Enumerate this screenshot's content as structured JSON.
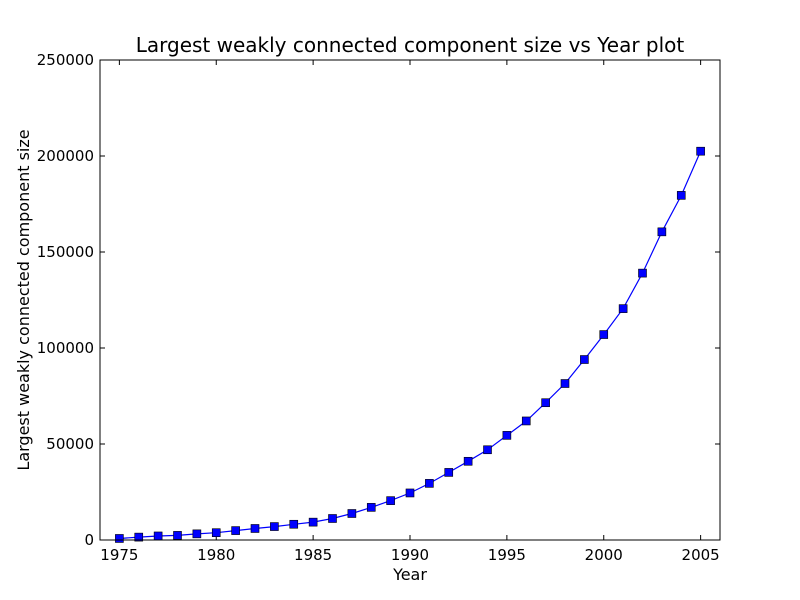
{
  "chart_data": {
    "type": "line",
    "title": "Largest weakly connected component size vs Year plot",
    "xlabel": "Year",
    "ylabel": "Largest weakly connected component size",
    "xlim": [
      1974,
      2006
    ],
    "ylim": [
      0,
      250000
    ],
    "x_ticks": [
      1975,
      1980,
      1985,
      1990,
      1995,
      2000,
      2005
    ],
    "y_ticks": [
      0,
      50000,
      100000,
      150000,
      200000,
      250000
    ],
    "grid": false,
    "series": [
      {
        "color": "#0000ff",
        "marker": "square",
        "x": [
          1975,
          1976,
          1977,
          1978,
          1979,
          1980,
          1981,
          1982,
          1983,
          1984,
          1985,
          1986,
          1987,
          1988,
          1989,
          1990,
          1991,
          1992,
          1993,
          1994,
          1995,
          1996,
          1997,
          1998,
          1999,
          2000,
          2001,
          2002,
          2003,
          2004,
          2005
        ],
        "y": [
          800,
          1500,
          2100,
          2400,
          3200,
          3800,
          4900,
          6000,
          7000,
          8200,
          9300,
          11200,
          13800,
          17000,
          20500,
          24500,
          29500,
          35200,
          41000,
          47000,
          54500,
          62000,
          71500,
          81500,
          94000,
          107000,
          120500,
          139000,
          160500,
          179500,
          202500
        ]
      }
    ]
  }
}
